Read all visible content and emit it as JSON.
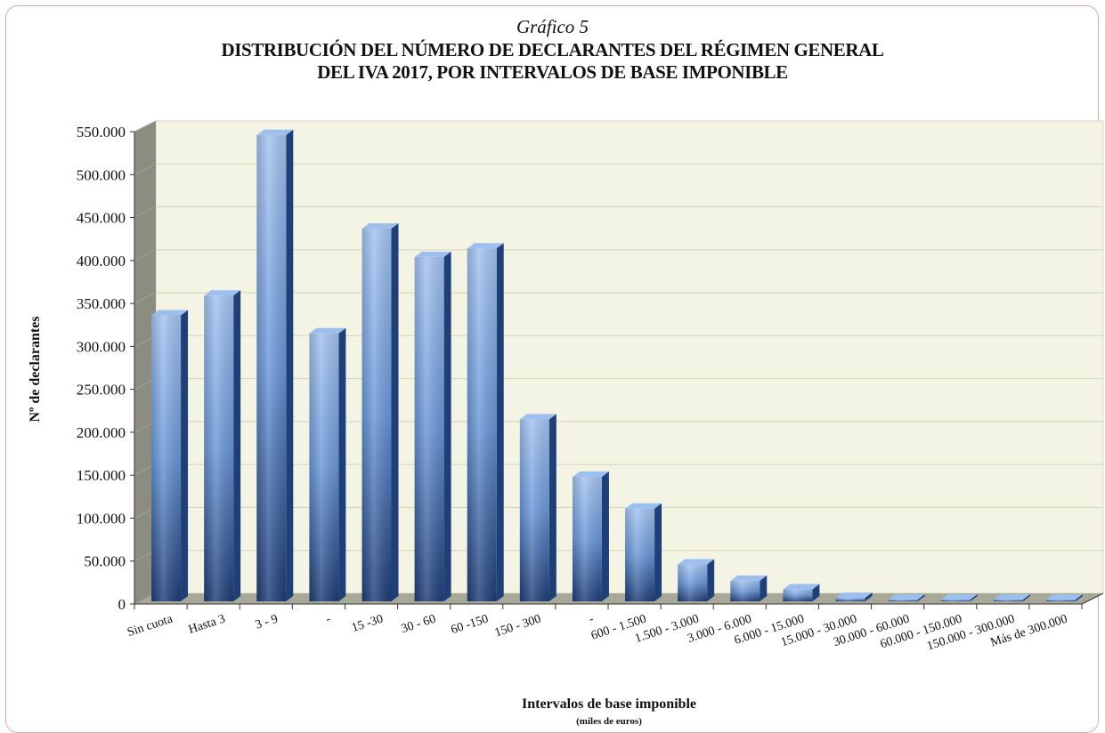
{
  "subtitle": "Gráfico 5",
  "title_line1": "DISTRIBUCIÓN DEL NÚMERO DE DECLARANTES DEL RÉGIMEN GENERAL",
  "title_line2": "DEL IVA 2017, POR INTERVALOS DE BASE IMPONIBLE",
  "colors": {
    "bar_light": "#9dbfee",
    "bar_mid": "#5f8fd4",
    "bar_dark": "#1f3f78",
    "plot_bg": "#f4f4e4",
    "floor": "#a8a898",
    "wall_side": "#8c8c80"
  },
  "chart_data": {
    "type": "bar",
    "three_d": true,
    "categories": [
      "Sin cuota",
      "Hasta 3",
      "3 - 9",
      "-",
      "15 -30",
      "30 - 60",
      "60 -150",
      "150 - 300",
      "-",
      "600 - 1.500",
      "1.500 - 3.000",
      "3.000 - 6.000",
      "6.000 - 15.000",
      "15.000 - 30.000",
      "30.000 - 60.000",
      "60.000 - 150.000",
      "150.000 - 300.000",
      "Más de 300.000"
    ],
    "values": [
      333000,
      356000,
      543000,
      312000,
      434000,
      401000,
      411000,
      212000,
      145000,
      108000,
      43000,
      24000,
      14000,
      4000,
      2000,
      800,
      400,
      300
    ],
    "xlabel": "Intervalos de base imponible",
    "xlabel_sub": "(miles de euros)",
    "ylabel": "Nº de declarantes",
    "ylim": [
      0,
      550000
    ],
    "yticks": [
      "0",
      "50.000",
      "100.000",
      "150.000",
      "200.000",
      "250.000",
      "300.000",
      "350.000",
      "400.000",
      "450.000",
      "500.000",
      "550.000"
    ],
    "grid": true,
    "legend": "none"
  }
}
